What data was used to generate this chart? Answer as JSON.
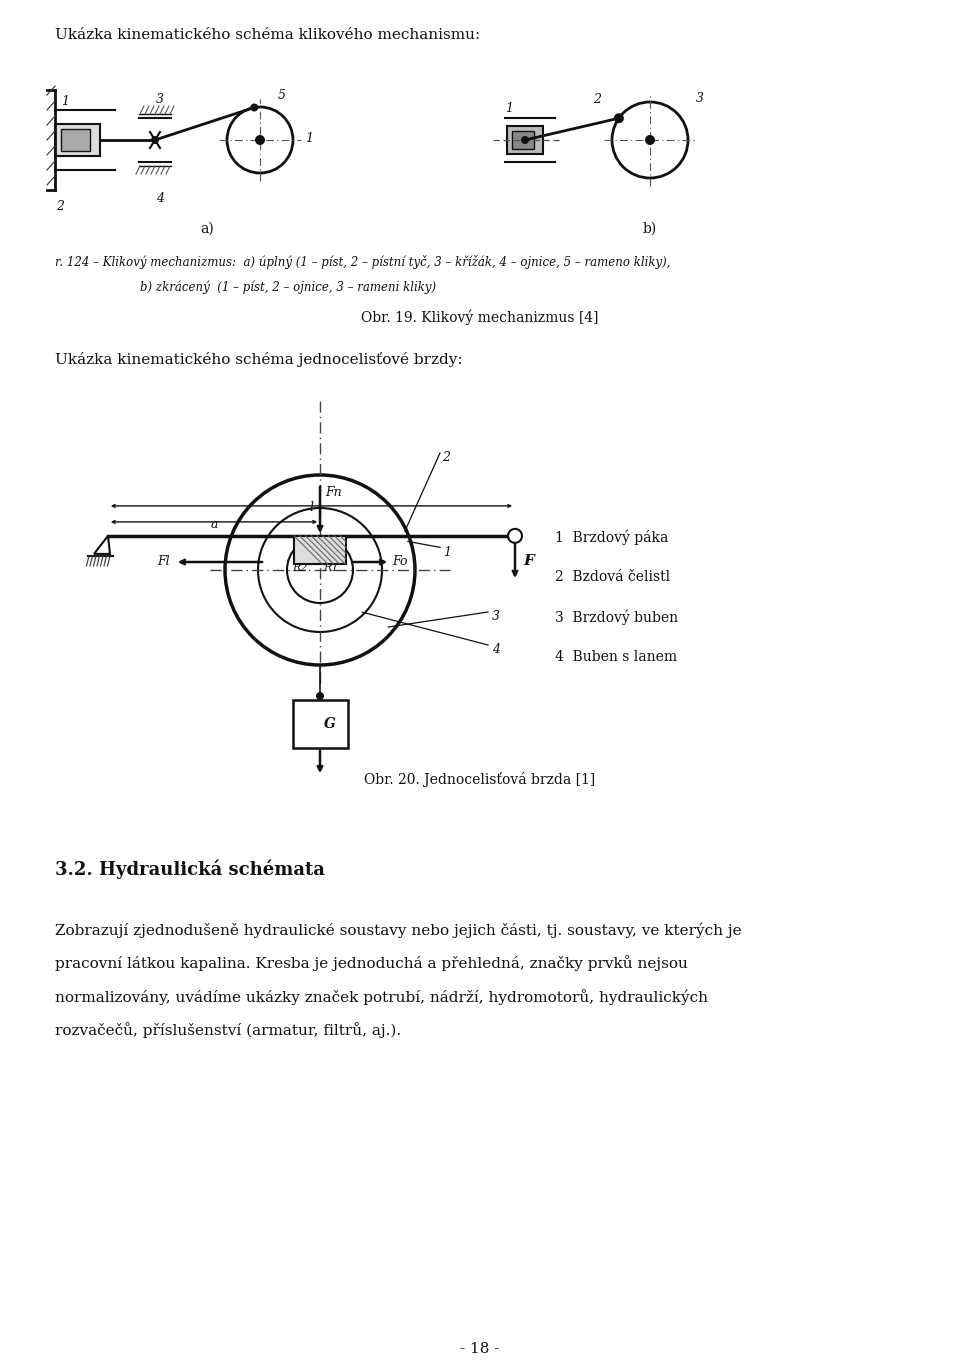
{
  "bg_color": "#ffffff",
  "page_width": 9.6,
  "page_height": 13.71,
  "ml": 0.55,
  "text_color": "#1a1a1a",
  "header1": "Ukázka kinematického schéma klikového mechanismu:",
  "caption1a": "r. 124 – Klikový mechanizmus:  a) úplný (1 – píst, 2 – pístní tyč, 3 – křížák, 4 – ojnice, 5 – rameno kliky),",
  "caption1b": "b) zkrácený  (1 – píst, 2 – ojnice, 3 – rameni kliky)",
  "obr19": "Obr. 19. Klikový mechanizmus [4]",
  "header2": "Ukázka kinematického schéma jednocelisťové brzdy:",
  "obr20": "Obr. 20. Jednocelisťová brzda [1]",
  "section": "3.2. Hydraulická schémata",
  "body": [
    "Zobrazují zjednodušeně hydraulické soustavy nebo jejich části, tj. soustavy, ve kterých je",
    "pracovní látkou kapalina. Kresba je jednoduchá a přehledná, značky prvků nejsou",
    "normalizovány, uvádíme ukázky značek potrubí, nádrží, hydromotorů, hydraulických",
    "rozvačečů, příslušenství (armatur, filtrů, aj.)."
  ],
  "pagenum": "- 18 -",
  "leg1": "1  Brzdový páka",
  "leg2": "2  Bzdová čelistl",
  "leg3": "3  Brzdový buben",
  "leg4": "4  Buben s lanem"
}
